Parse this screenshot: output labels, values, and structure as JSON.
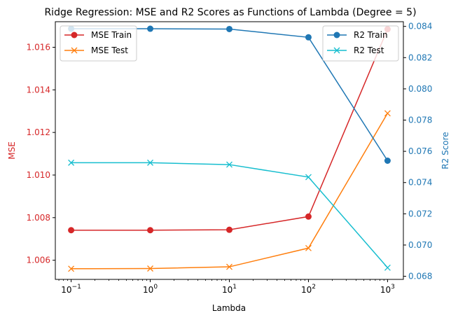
{
  "chart_data": {
    "type": "line",
    "title": "Ridge Regression: MSE and R2 Scores as Functions of Lambda (Degree = 5)",
    "xlabel": "Lambda",
    "x_scale": "log",
    "x": [
      0.1,
      1,
      10,
      100,
      1000
    ],
    "x_tick_labels": [
      {
        "base": "10",
        "exp": "−1",
        "value": 0.1
      },
      {
        "base": "10",
        "exp": "0",
        "value": 1
      },
      {
        "base": "10",
        "exp": "1",
        "value": 10
      },
      {
        "base": "10",
        "exp": "2",
        "value": 100
      },
      {
        "base": "10",
        "exp": "3",
        "value": 1000
      }
    ],
    "left_axis": {
      "label": "MSE",
      "color": "#d62728",
      "ylim": [
        1.0051,
        1.0172
      ],
      "ticks": [
        "1.006",
        "1.008",
        "1.010",
        "1.012",
        "1.014",
        "1.016"
      ],
      "tick_values": [
        1.006,
        1.008,
        1.01,
        1.012,
        1.014,
        1.016
      ],
      "legend_position": "upper-left",
      "series": [
        {
          "name": "MSE Train",
          "color": "#d62728",
          "marker": "circle",
          "values": [
            1.00741,
            1.00741,
            1.00743,
            1.00805,
            1.01685
          ]
        },
        {
          "name": "MSE Test",
          "color": "#ff7f0e",
          "marker": "x",
          "values": [
            1.0056,
            1.00561,
            1.00569,
            1.00657,
            1.0129
          ]
        }
      ]
    },
    "right_axis": {
      "label": "R2 Score",
      "color": "#1f77b4",
      "ylim": [
        0.0678,
        0.0843
      ],
      "ticks": [
        "0.068",
        "0.070",
        "0.072",
        "0.074",
        "0.076",
        "0.078",
        "0.080",
        "0.082",
        "0.084"
      ],
      "tick_values": [
        0.068,
        0.07,
        0.072,
        0.074,
        0.076,
        0.078,
        0.08,
        0.082,
        0.084
      ],
      "legend_position": "upper-right",
      "series": [
        {
          "name": "R2 Train",
          "color": "#1f77b4",
          "marker": "circle",
          "values": [
            0.08385,
            0.08385,
            0.08383,
            0.0833,
            0.0754
          ]
        },
        {
          "name": "R2 Test",
          "color": "#17becf",
          "marker": "x",
          "values": [
            0.07527,
            0.07527,
            0.07515,
            0.07435,
            0.06855
          ]
        }
      ]
    },
    "grid": false
  }
}
